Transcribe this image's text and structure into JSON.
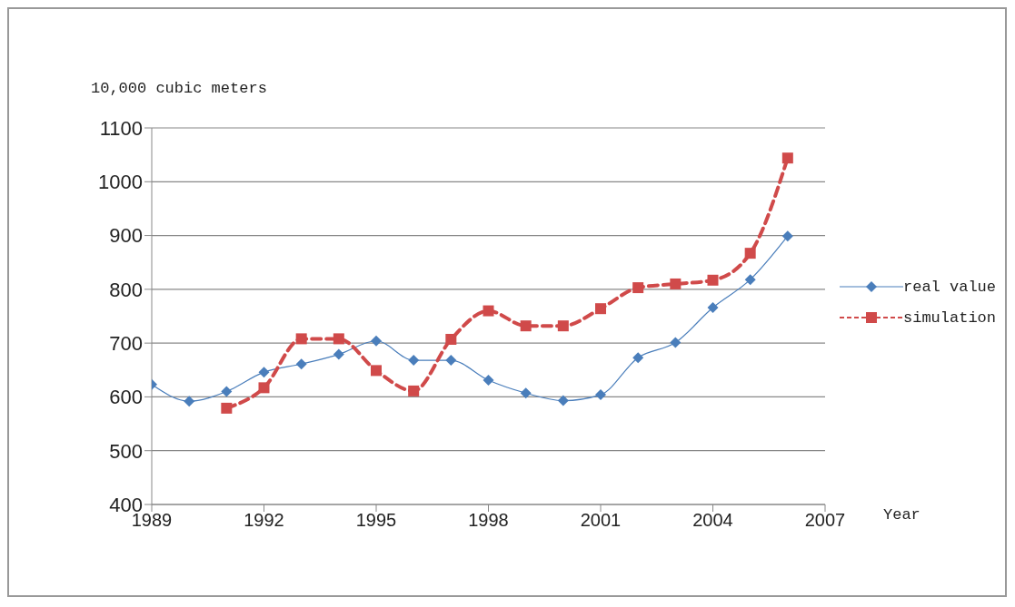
{
  "chart_data": {
    "type": "line",
    "xlabel": "Year",
    "ylabel": "10,000 cubic meters",
    "x": [
      1989,
      1990,
      1991,
      1992,
      1993,
      1994,
      1995,
      1996,
      1997,
      1998,
      1999,
      2000,
      2001,
      2002,
      2003,
      2004,
      2005,
      2006
    ],
    "series": [
      {
        "name": "real value",
        "color": "#4a7ebb",
        "marker": "diamond",
        "line_style": "solid",
        "values": [
          623,
          592,
          610,
          646,
          661,
          679,
          704,
          668,
          668,
          631,
          607,
          593,
          604,
          673,
          701,
          766,
          818,
          899
        ]
      },
      {
        "name": "simulation",
        "color": "#d04a4a",
        "marker": "square",
        "line_style": "dashed",
        "values": [
          null,
          null,
          579,
          617,
          708,
          708,
          649,
          611,
          707,
          760,
          732,
          732,
          764,
          803,
          810,
          817,
          867,
          1044
        ]
      }
    ],
    "xlim": [
      1989,
      2007
    ],
    "xticks": [
      1989,
      1992,
      1995,
      1998,
      2001,
      2004,
      2007
    ],
    "ylim": [
      400,
      1100
    ],
    "yticks": [
      400,
      500,
      600,
      700,
      800,
      900,
      1000,
      1100
    ],
    "grid": "y",
    "legend": "right"
  }
}
